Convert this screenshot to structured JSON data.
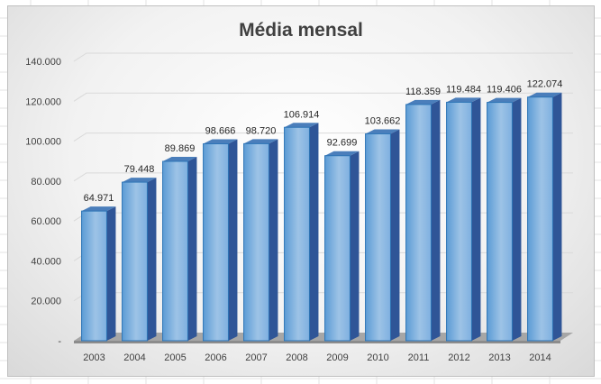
{
  "chart_data": {
    "type": "bar",
    "title": "Média mensal",
    "xlabel": "",
    "ylabel": "",
    "categories": [
      "2003",
      "2004",
      "2005",
      "2006",
      "2007",
      "2008",
      "2009",
      "2010",
      "2011",
      "2012",
      "2013",
      "2014"
    ],
    "values": [
      64971,
      79448,
      89869,
      98666,
      98720,
      106914,
      92699,
      103662,
      118359,
      119484,
      119406,
      122074
    ],
    "data_labels": [
      "64.971",
      "79.448",
      "89.869",
      "98.666",
      "98.720",
      "106.914",
      "92.699",
      "103.662",
      "118.359",
      "119.484",
      "119.406",
      "122.074"
    ],
    "y_ticks": [
      0,
      20000,
      40000,
      60000,
      80000,
      100000,
      120000,
      140000
    ],
    "y_tick_labels": [
      "-",
      "20.000",
      "40.000",
      "60.000",
      "80.000",
      "100.000",
      "120.000",
      "140.000"
    ],
    "ylim": [
      0,
      140000
    ],
    "grid": true,
    "legend": "none",
    "style": "3d-column",
    "colors": {
      "bar_light": "#9dc3e6",
      "bar_mid": "#6fa8dc",
      "bar_dark": "#2f5597",
      "bar_top": "#4a7ebb",
      "floor": "#a6a6a6",
      "text": "#404040",
      "gridline": "#d9d9d9"
    }
  }
}
